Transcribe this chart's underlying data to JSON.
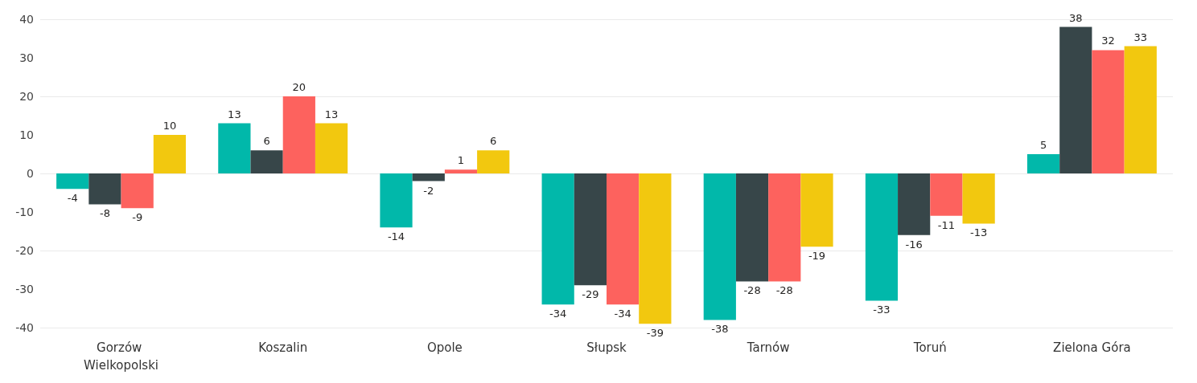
{
  "chart_data": {
    "type": "bar",
    "categories": [
      "Gorzów Wielkopolski",
      "Koszalin",
      "Opole",
      "Słupsk",
      "Tarnów",
      "Toruń",
      "Zielona Góra"
    ],
    "series": [
      {
        "color": "#01b8aa",
        "values": [
          -4,
          13,
          -14,
          -34,
          -38,
          -33,
          5
        ]
      },
      {
        "color": "#374649",
        "values": [
          -8,
          6,
          -2,
          -29,
          -28,
          -16,
          38
        ]
      },
      {
        "color": "#fd625e",
        "values": [
          -9,
          20,
          1,
          -34,
          -28,
          -11,
          32
        ]
      },
      {
        "color": "#f2c80f",
        "values": [
          10,
          13,
          6,
          -39,
          -19,
          -13,
          33
        ]
      }
    ],
    "ylim": [
      -40,
      40
    ],
    "yticks": [
      -40,
      -30,
      -20,
      -10,
      0,
      10,
      20,
      30,
      40
    ],
    "grid": "y",
    "legend": false,
    "data_labels": true
  }
}
